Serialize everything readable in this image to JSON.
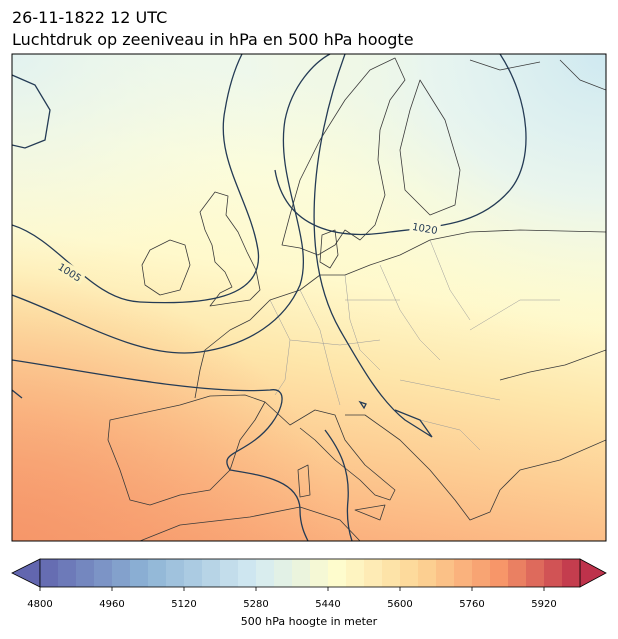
{
  "title_line1": "26-11-1822 12 UTC",
  "title_line2": "Luchtdruk op zeeniveau in hPa en 500 hPa hoogte",
  "map": {
    "isobar_labels": [
      "1005",
      "1020"
    ]
  },
  "colorbar": {
    "label": "500 hPa hoogte in meter",
    "lim": [
      4800,
      6000
    ],
    "level_step": 40,
    "ticks": [
      4800,
      4960,
      5120,
      5280,
      5440,
      5600,
      5760,
      5920
    ]
  }
}
